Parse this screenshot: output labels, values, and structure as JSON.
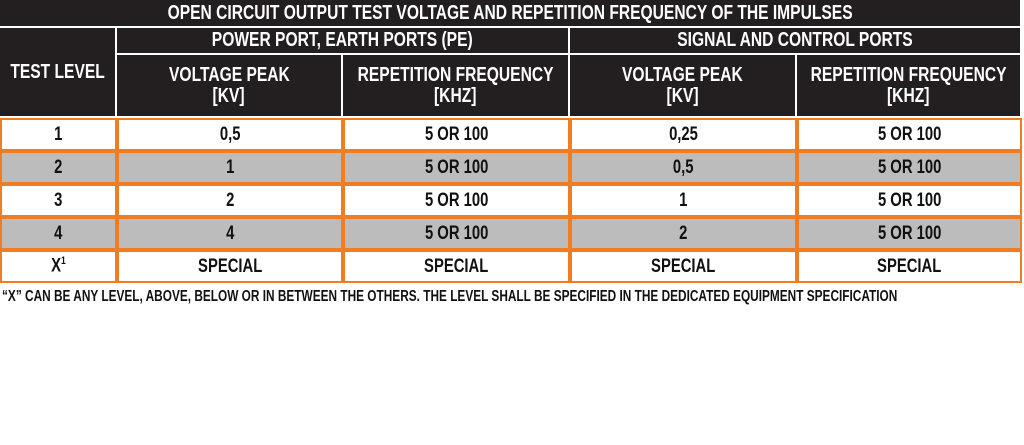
{
  "table": {
    "title": "OPEN CIRCUIT OUTPUT TEST VOLTAGE AND REPETITION FREQUENCY OF THE IMPULSES",
    "level_header": "TEST LEVEL",
    "groups": [
      "POWER PORT, EARTH PORTS (PE)",
      "SIGNAL AND CONTROL PORTS"
    ],
    "subheaders": [
      [
        "VOLTAGE PEAK",
        "[KV]"
      ],
      [
        "REPETITION FREQUENCY",
        "[KHZ]"
      ],
      [
        "VOLTAGE PEAK",
        "[KV]"
      ],
      [
        "REPETITION FREQUENCY",
        "[KHZ]"
      ]
    ],
    "rows": [
      [
        "1",
        "0,5",
        "5 OR 100",
        "0,25",
        "5 OR 100"
      ],
      [
        "2",
        "1",
        "5 OR 100",
        "0,5",
        "5 OR 100"
      ],
      [
        "3",
        "2",
        "5 OR 100",
        "1",
        "5 OR 100"
      ],
      [
        "4",
        "4",
        "5 OR 100",
        "2",
        "5 OR 100"
      ],
      [
        "X",
        "SPECIAL",
        "SPECIAL",
        "SPECIAL",
        "SPECIAL"
      ]
    ],
    "footnote_mark": "1",
    "footnote": "“X” CAN BE ANY LEVEL, ABOVE, BELOW OR IN BETWEEN THE OTHERS. THE LEVEL SHALL BE SPECIFIED IN THE DEDICATED EQUIPMENT SPECIFICATION"
  }
}
